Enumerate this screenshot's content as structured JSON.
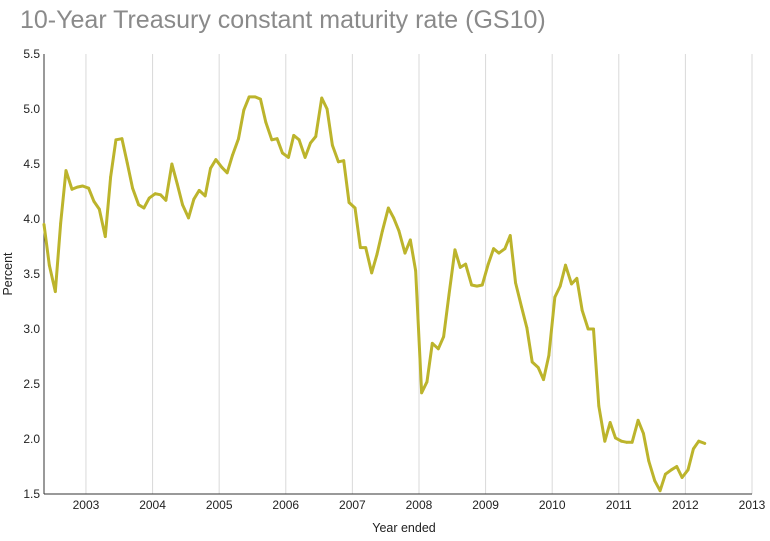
{
  "chart_data": {
    "type": "line",
    "title": "10-Year Treasury constant maturity rate (GS10)",
    "xlabel": "Year ended",
    "ylabel": "Percent",
    "xlim": [
      2002.37,
      2013.0
    ],
    "ylim": [
      1.5,
      5.5
    ],
    "x_ticks": [
      "2003",
      "2004",
      "2005",
      "2006",
      "2007",
      "2008",
      "2009",
      "2010",
      "2011",
      "2012",
      "2013"
    ],
    "y_ticks": [
      "1.5",
      "2.0",
      "2.5",
      "3.0",
      "3.5",
      "4.0",
      "4.5",
      "5.0",
      "5.5"
    ],
    "grid": "vertical",
    "colors": {
      "line": "#bcb42c",
      "grid": "#d9d9d9",
      "title": "#8a8a8a"
    },
    "series": [
      {
        "x": [
          2002.37,
          2002.45,
          2002.54,
          2002.62,
          2002.7,
          2002.79,
          2002.87,
          2002.95,
          2003.04,
          2003.12,
          2003.2,
          2003.29,
          2003.37,
          2003.45,
          2003.54,
          2003.62,
          2003.7,
          2003.79,
          2003.87,
          2003.95,
          2004.04,
          2004.12,
          2004.2,
          2004.29,
          2004.37,
          2004.45,
          2004.54,
          2004.62,
          2004.7,
          2004.79,
          2004.87,
          2004.95,
          2005.04,
          2005.12,
          2005.2,
          2005.29,
          2005.37,
          2005.45,
          2005.54,
          2005.62,
          2005.7,
          2005.79,
          2005.87,
          2005.95,
          2006.04,
          2006.12,
          2006.2,
          2006.29,
          2006.37,
          2006.45,
          2006.54,
          2006.62,
          2006.7,
          2006.79,
          2006.87,
          2006.95,
          2007.04,
          2007.12,
          2007.2,
          2007.29,
          2007.37,
          2007.45,
          2007.54,
          2007.62,
          2007.7,
          2007.79,
          2007.87,
          2007.95,
          2008.04,
          2008.12,
          2008.2,
          2008.29,
          2008.37,
          2008.45,
          2008.54,
          2008.62,
          2008.7,
          2008.79,
          2008.87,
          2008.95,
          2009.04,
          2009.12,
          2009.2,
          2009.29,
          2009.37,
          2009.45,
          2009.54,
          2009.62,
          2009.7,
          2009.79,
          2009.87,
          2009.95,
          2010.04,
          2010.12,
          2010.2,
          2010.29,
          2010.37,
          2010.45,
          2010.54,
          2010.62,
          2010.7,
          2010.79,
          2010.87,
          2010.95,
          2011.04,
          2011.12,
          2011.2,
          2011.29,
          2011.37,
          2011.45,
          2011.54,
          2011.62,
          2011.7,
          2011.79,
          2011.87,
          2011.95,
          2012.04,
          2012.12,
          2012.2,
          2012.29
        ],
        "y": [
          3.95,
          3.58,
          3.34,
          3.96,
          4.44,
          4.27,
          4.29,
          4.3,
          4.28,
          4.16,
          4.09,
          3.84,
          4.38,
          4.72,
          4.73,
          4.51,
          4.28,
          4.13,
          4.1,
          4.19,
          4.23,
          4.22,
          4.17,
          4.5,
          4.32,
          4.13,
          4.01,
          4.18,
          4.26,
          4.21,
          4.46,
          4.54,
          4.47,
          4.42,
          4.58,
          4.73,
          4.99,
          5.11,
          5.11,
          5.09,
          4.88,
          4.72,
          4.73,
          4.6,
          4.56,
          4.76,
          4.72,
          4.56,
          4.69,
          4.75,
          5.1,
          5.0,
          4.67,
          4.52,
          4.53,
          4.15,
          4.1,
          3.74,
          3.74,
          3.51,
          3.68,
          3.89,
          4.1,
          4.01,
          3.89,
          3.69,
          3.81,
          3.53,
          2.42,
          2.52,
          2.87,
          2.82,
          2.93,
          3.31,
          3.72,
          3.56,
          3.59,
          3.4,
          3.39,
          3.4,
          3.59,
          3.73,
          3.69,
          3.73,
          3.85,
          3.42,
          3.2,
          3.01,
          2.7,
          2.65,
          2.54,
          2.76,
          3.29,
          3.39,
          3.58,
          3.41,
          3.46,
          3.17,
          3.0,
          3.0,
          2.3,
          1.98,
          2.15,
          2.01,
          1.98,
          1.97,
          1.97,
          2.17,
          2.05,
          1.8,
          1.62,
          1.53,
          1.68,
          1.72,
          1.75,
          1.65,
          1.72,
          1.91,
          1.98,
          1.96
        ]
      }
    ]
  }
}
